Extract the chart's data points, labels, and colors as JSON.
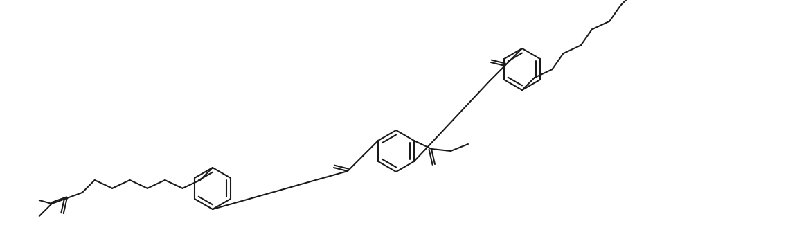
{
  "figsize": [
    11.51,
    3.58
  ],
  "dpi": 100,
  "bg_color": "#ffffff",
  "line_color": "#1a1a1a",
  "lw": 1.5
}
